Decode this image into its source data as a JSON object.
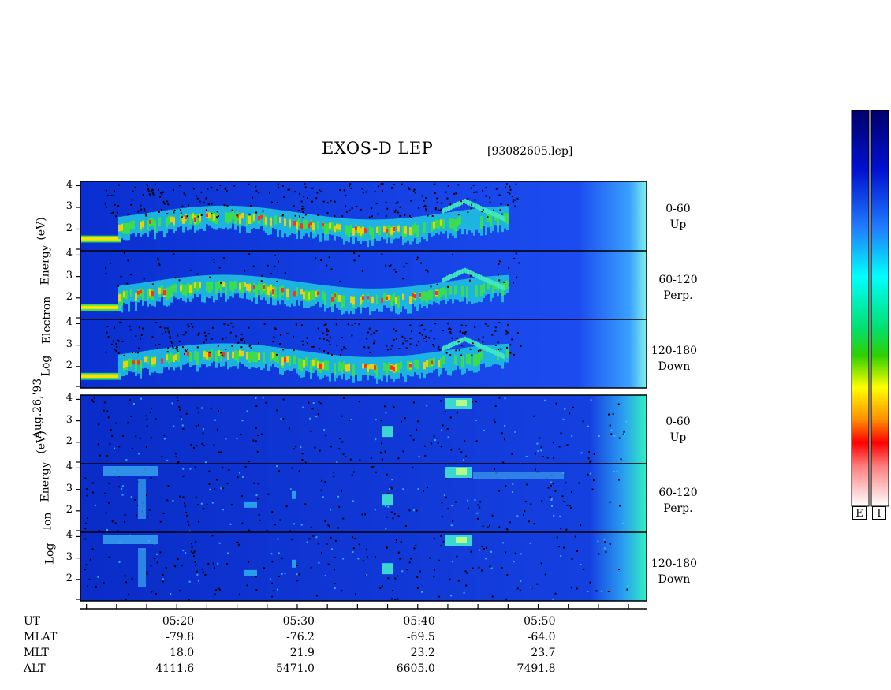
{
  "header": {
    "title": "EXOS-D LEP",
    "file": "[93082605.lep]"
  },
  "side_labels": {
    "date": "Aug.26,'93",
    "electron": [
      "Energy",
      "Electron",
      "Log"
    ],
    "electron_unit": "(eV)",
    "ion": [
      "Energy",
      "Ion",
      "Log"
    ],
    "ion_unit": "(eV)"
  },
  "channels": [
    {
      "range": "0-60",
      "dir": "Up"
    },
    {
      "range": "60-120",
      "dir": "Perp."
    },
    {
      "range": "120-180",
      "dir": "Down"
    },
    {
      "range": "0-60",
      "dir": "Up"
    },
    {
      "range": "60-120",
      "dir": "Perp."
    },
    {
      "range": "120-180",
      "dir": "Down"
    }
  ],
  "colorbars": {
    "left": "E",
    "right": "I"
  },
  "footer": {
    "labels": [
      "UT",
      "MLAT",
      "MLT",
      "ALT"
    ],
    "columns": [
      {
        "ut": "05:20",
        "mlat": "-79.8",
        "mlt": "18.0",
        "alt": "4111.6"
      },
      {
        "ut": "05:30",
        "mlat": "-76.2",
        "mlt": "21.9",
        "alt": "5471.0"
      },
      {
        "ut": "05:40",
        "mlat": "-69.5",
        "mlt": "23.2",
        "alt": "6605.0"
      },
      {
        "ut": "05:50",
        "mlat": "-64.0",
        "mlt": "23.7",
        "alt": "7491.8"
      }
    ]
  },
  "chart_data": {
    "type": "heatmap",
    "x_range_ut": [
      "05:12",
      "05:59"
    ],
    "y_ticks": [
      "4",
      "3",
      "2"
    ],
    "y_range_log_ev": [
      1,
      4.2
    ],
    "panels": [
      {
        "species": "Electron",
        "pitch": "0-60 Up"
      },
      {
        "species": "Electron",
        "pitch": "60-120 Perp."
      },
      {
        "species": "Electron",
        "pitch": "120-180 Down"
      },
      {
        "species": "Ion",
        "pitch": "0-60 Up"
      },
      {
        "species": "Ion",
        "pitch": "60-120 Perp."
      },
      {
        "species": "Ion",
        "pitch": "120-180 Down"
      }
    ]
  }
}
